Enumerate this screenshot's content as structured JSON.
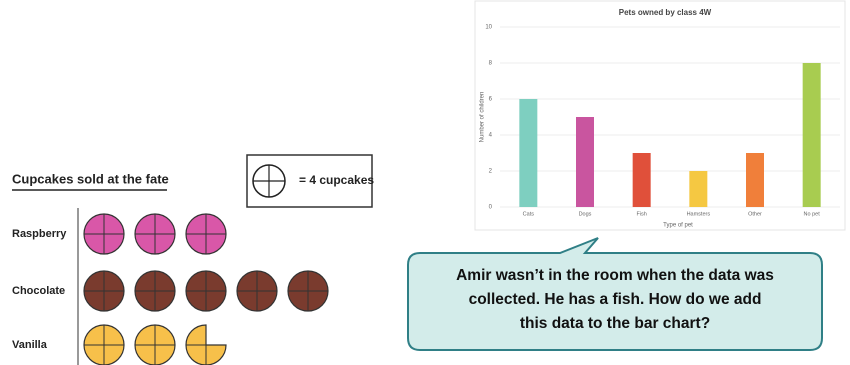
{
  "chart_data": [
    {
      "type": "pictogram",
      "title": "Cupcakes sold at the fate",
      "key_label": "= 4 cupcakes",
      "key_value": 4,
      "categories": [
        "Raspberry",
        "Chocolate",
        "Vanilla"
      ],
      "values": [
        12,
        20,
        11
      ],
      "colors": [
        "#d957a8",
        "#7a3b2e",
        "#f7c04a"
      ]
    },
    {
      "type": "bar",
      "title": "Pets owned by class 4W",
      "x_label": "Type of pet",
      "y_label": "Number of children",
      "categories": [
        "Cats",
        "Dogs",
        "Fish",
        "Hamsters",
        "Other",
        "No pet"
      ],
      "values": [
        6,
        5,
        3,
        2,
        3,
        8
      ],
      "colors": [
        "#7ecfc0",
        "#c9559f",
        "#e0503a",
        "#f5c842",
        "#f07f3a",
        "#a8cc50"
      ],
      "ylim": [
        0,
        10
      ],
      "yticks": [
        0,
        2,
        4,
        6,
        8,
        10
      ],
      "grid": true
    }
  ],
  "callout": {
    "lines": [
      "Amir wasn’t in the room when the data was",
      "collected. He has a fish. How do we add",
      "this data to the bar chart?"
    ]
  }
}
